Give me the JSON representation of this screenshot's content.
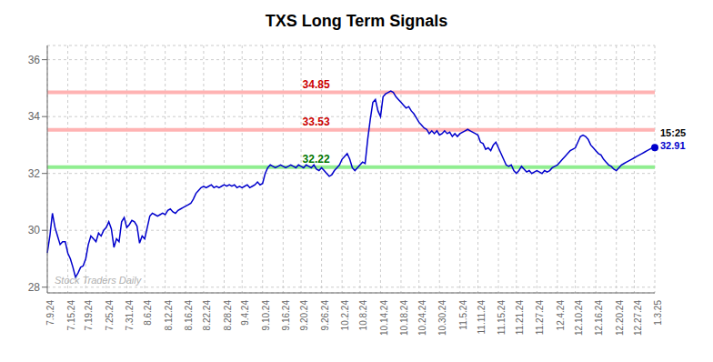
{
  "chart_data": {
    "type": "line",
    "title": "TXS Long Term Signals",
    "ylim": [
      27.8,
      36.5
    ],
    "yticks": [
      28,
      30,
      32,
      34,
      36
    ],
    "grid": true,
    "color": "#0000cc",
    "marker": "last",
    "last_time": "15:25",
    "watermark": "Stock Traders Daily",
    "reference_lines": [
      {
        "value": 34.85,
        "color": "#ffb3b3",
        "label_color": "#cc0000"
      },
      {
        "value": 33.53,
        "color": "#ffb3b3",
        "label_color": "#cc0000"
      },
      {
        "value": 32.22,
        "color": "#90ee90",
        "label_color": "#007700"
      }
    ],
    "categories": [
      "7.9.24",
      null,
      null,
      null,
      null,
      null,
      null,
      null,
      "7.15.24",
      null,
      null,
      null,
      null,
      null,
      null,
      "7.19.24",
      null,
      null,
      null,
      null,
      null,
      null,
      null,
      "7.25.24",
      null,
      null,
      null,
      null,
      null,
      null,
      null,
      "7.31.24",
      null,
      null,
      null,
      null,
      null,
      null,
      "8.6.24",
      null,
      null,
      null,
      null,
      null,
      null,
      null,
      "8.12.24",
      null,
      null,
      null,
      null,
      null,
      null,
      null,
      "8.16.24",
      null,
      null,
      null,
      null,
      null,
      null,
      "8.22.24",
      null,
      null,
      null,
      null,
      null,
      null,
      null,
      "8.28.24",
      null,
      null,
      null,
      null,
      null,
      null,
      "9.4.24",
      null,
      null,
      null,
      null,
      null,
      null,
      null,
      "9.10.24",
      null,
      null,
      null,
      null,
      null,
      null,
      null,
      "9.16.24",
      null,
      null,
      null,
      null,
      null,
      null,
      "9.20.24",
      null,
      null,
      null,
      null,
      null,
      null,
      null,
      "9.26.24",
      null,
      null,
      null,
      null,
      null,
      null,
      null,
      "10.2.24",
      null,
      null,
      null,
      null,
      null,
      null,
      "10.8.24",
      null,
      null,
      null,
      null,
      null,
      null,
      null,
      "10.14.24",
      null,
      null,
      null,
      null,
      null,
      null,
      null,
      "10.18.24",
      null,
      null,
      null,
      null,
      null,
      null,
      "10.24.24",
      null,
      null,
      null,
      null,
      null,
      null,
      null,
      "10.30.24",
      null,
      null,
      null,
      null,
      null,
      null,
      null,
      "11.5.24",
      null,
      null,
      null,
      null,
      null,
      null,
      "11.11.24",
      null,
      null,
      null,
      null,
      null,
      null,
      null,
      "11.15.24",
      null,
      null,
      null,
      null,
      null,
      null,
      "11.21.24",
      null,
      null,
      null,
      null,
      null,
      null,
      null,
      "11.27.24",
      null,
      null,
      null,
      null,
      null,
      null,
      null,
      "12.4.24",
      null,
      null,
      null,
      null,
      null,
      null,
      "12.10.24",
      null,
      null,
      null,
      null,
      null,
      null,
      null,
      "12.16.24",
      null,
      null,
      null,
      null,
      null,
      null,
      null,
      "12.20.24",
      null,
      null,
      null,
      null,
      null,
      null,
      "12.27.24",
      null,
      null,
      null,
      null,
      null,
      null,
      null,
      "1.3.25"
    ],
    "values": [
      29.2,
      29.8,
      30.6,
      30.1,
      29.8,
      29.5,
      29.6,
      29.6,
      29.2,
      29.0,
      28.7,
      28.35,
      28.5,
      28.7,
      28.75,
      29.0,
      29.5,
      29.8,
      29.7,
      29.6,
      29.9,
      29.8,
      30.0,
      30.1,
      30.3,
      30.05,
      29.4,
      29.7,
      29.6,
      30.3,
      30.45,
      30.1,
      30.2,
      30.35,
      30.3,
      30.15,
      29.55,
      29.8,
      29.7,
      30.1,
      30.5,
      30.6,
      30.55,
      30.5,
      30.55,
      30.6,
      30.55,
      30.7,
      30.75,
      30.65,
      30.6,
      30.7,
      30.75,
      30.8,
      30.85,
      30.9,
      30.95,
      31.1,
      31.3,
      31.4,
      31.5,
      31.55,
      31.5,
      31.55,
      31.6,
      31.5,
      31.55,
      31.5,
      31.55,
      31.6,
      31.55,
      31.6,
      31.55,
      31.6,
      31.5,
      31.55,
      31.5,
      31.55,
      31.6,
      31.5,
      31.55,
      31.6,
      31.7,
      31.6,
      31.65,
      32.0,
      32.2,
      32.3,
      32.25,
      32.2,
      32.25,
      32.3,
      32.25,
      32.2,
      32.25,
      32.3,
      32.25,
      32.2,
      32.3,
      32.25,
      32.2,
      32.3,
      32.25,
      32.2,
      32.3,
      32.15,
      32.1,
      32.2,
      32.1,
      32.0,
      31.9,
      31.95,
      32.1,
      32.2,
      32.3,
      32.5,
      32.6,
      32.7,
      32.5,
      32.2,
      32.1,
      32.2,
      32.3,
      32.4,
      32.35,
      33.2,
      33.9,
      34.5,
      34.6,
      34.2,
      34.0,
      34.7,
      34.8,
      34.85,
      34.9,
      34.85,
      34.7,
      34.6,
      34.5,
      34.4,
      34.3,
      34.35,
      34.2,
      34.1,
      33.95,
      33.8,
      33.7,
      33.6,
      33.55,
      33.4,
      33.5,
      33.4,
      33.5,
      33.35,
      33.4,
      33.5,
      33.4,
      33.45,
      33.3,
      33.4,
      33.3,
      33.4,
      33.45,
      33.5,
      33.55,
      33.5,
      33.45,
      33.4,
      33.35,
      33.1,
      33.05,
      32.85,
      32.9,
      32.8,
      33.0,
      33.1,
      32.9,
      32.7,
      32.5,
      32.3,
      32.25,
      32.3,
      32.1,
      32.0,
      32.1,
      32.25,
      32.15,
      32.05,
      32.1,
      32.0,
      32.05,
      32.1,
      32.05,
      32.0,
      32.1,
      32.05,
      32.1,
      32.2,
      32.25,
      32.3,
      32.4,
      32.5,
      32.6,
      32.7,
      32.8,
      32.85,
      32.9,
      33.1,
      33.3,
      33.35,
      33.3,
      33.2,
      33.0,
      32.9,
      32.8,
      32.7,
      32.65,
      32.5,
      32.4,
      32.3,
      32.25,
      32.15,
      32.1,
      32.2,
      32.3,
      32.35,
      32.4,
      32.45,
      32.5,
      32.55,
      32.6,
      32.65,
      32.7,
      32.75,
      32.8,
      32.85,
      32.9,
      32.91
    ]
  }
}
